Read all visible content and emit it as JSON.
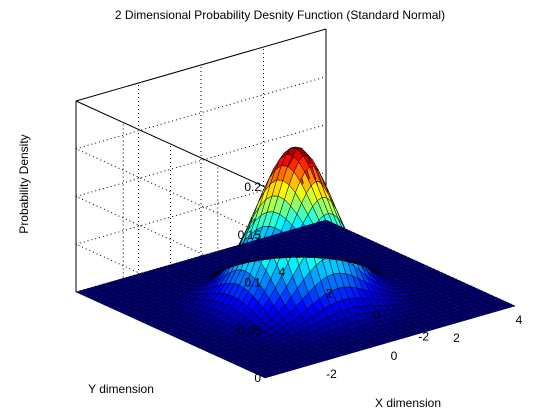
{
  "chart_data": {
    "type": "surface",
    "title": "2 Dimensional Probability Desnity Function (Standard Normal)",
    "xlabel": "X dimension",
    "ylabel": "Y dimension",
    "zlabel": "Probability Density",
    "function": "f(x,y) = exp(-(x^2+y^2)/2) / (2*pi)",
    "x_range": [
      -4,
      4
    ],
    "y_range": [
      -4,
      4
    ],
    "x_step": 0.2,
    "y_step": 0.2,
    "zlim": [
      0,
      0.2
    ],
    "peak": {
      "x": 0,
      "y": 0,
      "z": 0.159
    },
    "x_ticks": [
      "-2",
      "0",
      "2",
      "4"
    ],
    "y_ticks": [
      "-2",
      "0",
      "2",
      "4"
    ],
    "z_ticks": [
      "0",
      "0.05",
      "0.1",
      "0.15",
      "0.2"
    ],
    "grid": true,
    "colormap": "jet",
    "edge_color": "#000000"
  }
}
